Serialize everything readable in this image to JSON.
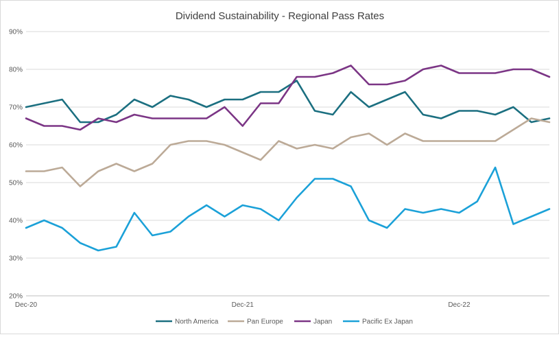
{
  "chart_data": {
    "type": "line",
    "title": "Dividend Sustainability - Regional Pass Rates",
    "xlabel": "",
    "ylabel": "",
    "x_tick_labels": [
      "Dec-20",
      "Dec-21",
      "Dec-22"
    ],
    "y_tick_labels": [
      "20%",
      "30%",
      "40%",
      "50%",
      "60%",
      "70%",
      "80%",
      "90%"
    ],
    "ylim": [
      20,
      90
    ],
    "grid": true,
    "legend_position": "bottom",
    "series": [
      {
        "name": "North America",
        "color": "#1b6f80",
        "values": [
          70,
          71,
          72,
          66,
          66,
          68,
          72,
          70,
          73,
          72,
          70,
          72,
          72,
          74,
          74,
          77,
          69,
          68,
          74,
          70,
          72,
          74,
          68,
          67,
          69,
          69,
          68,
          70,
          66,
          67
        ]
      },
      {
        "name": "Pan Europe",
        "color": "#bcaa97",
        "values": [
          53,
          53,
          54,
          49,
          53,
          55,
          53,
          55,
          60,
          61,
          61,
          60,
          58,
          56,
          61,
          59,
          60,
          59,
          62,
          63,
          60,
          63,
          61,
          61,
          61,
          61,
          61,
          64,
          67,
          66
        ]
      },
      {
        "name": "Japan",
        "color": "#7b3585",
        "values": [
          67,
          65,
          65,
          64,
          67,
          66,
          68,
          67,
          67,
          67,
          67,
          70,
          65,
          71,
          71,
          78,
          78,
          79,
          81,
          76,
          76,
          77,
          80,
          81,
          79,
          79,
          79,
          80,
          80,
          78
        ]
      },
      {
        "name": "Pacific Ex Japan",
        "color": "#1ba1d8",
        "values": [
          38,
          40,
          38,
          34,
          32,
          33,
          42,
          36,
          37,
          41,
          44,
          41,
          44,
          43,
          40,
          46,
          51,
          51,
          49,
          40,
          38,
          43,
          42,
          43,
          42,
          45,
          54,
          39,
          41,
          43
        ]
      }
    ]
  }
}
